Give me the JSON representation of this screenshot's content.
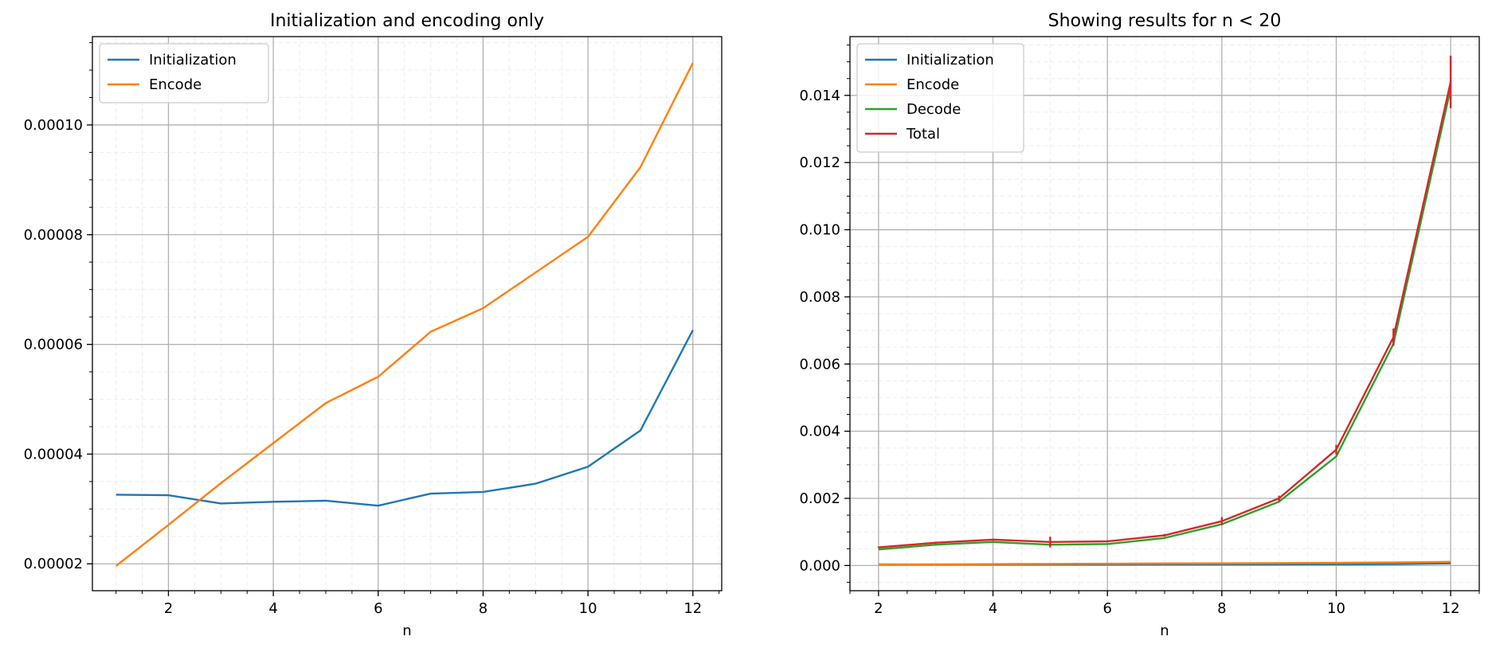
{
  "chart_data": [
    {
      "type": "line",
      "title": "Initialization and encoding only",
      "xlabel": "n",
      "ylabel": "",
      "xlim": [
        0.55,
        12.55
      ],
      "ylim": [
        1.51e-05,
        0.0001161
      ],
      "xticks": [
        2,
        4,
        6,
        8,
        10,
        12
      ],
      "xtick_labels": [
        "2",
        "4",
        "6",
        "8",
        "10",
        "12"
      ],
      "yticks": [
        2e-05,
        4e-05,
        6e-05,
        8e-05,
        0.0001
      ],
      "ytick_labels": [
        "0.00002",
        "0.00004",
        "0.00006",
        "0.00008",
        "0.00010"
      ],
      "grid": true,
      "minor_grid": true,
      "legend_position": "top-left",
      "x": [
        1,
        2,
        3,
        4,
        5,
        6,
        7,
        8,
        9,
        10,
        11,
        12
      ],
      "series": [
        {
          "name": "Initialization",
          "color": "#1f77b4",
          "values": [
            3.26e-05,
            3.25e-05,
            3.1e-05,
            3.13e-05,
            3.15e-05,
            3.06e-05,
            3.28e-05,
            3.31e-05,
            3.46e-05,
            3.77e-05,
            4.43e-05,
            6.26e-05
          ]
        },
        {
          "name": "Encode",
          "color": "#ff7f0e",
          "values": [
            1.96e-05,
            2.71e-05,
            3.47e-05,
            4.2e-05,
            4.93e-05,
            5.41e-05,
            6.23e-05,
            6.66e-05,
            7.31e-05,
            7.96e-05,
            9.23e-05,
            0.0001113
          ]
        }
      ]
    },
    {
      "type": "line",
      "title": "Showing results for n < 20",
      "xlabel": "n",
      "ylabel": "",
      "xlim": [
        1.5,
        12.5
      ],
      "ylim": [
        -0.00075,
        0.01575
      ],
      "xticks": [
        2,
        4,
        6,
        8,
        10,
        12
      ],
      "xtick_labels": [
        "2",
        "4",
        "6",
        "8",
        "10",
        "12"
      ],
      "yticks": [
        0,
        0.002,
        0.004,
        0.006,
        0.008,
        0.01,
        0.012,
        0.014
      ],
      "ytick_labels": [
        "0.000",
        "0.002",
        "0.004",
        "0.006",
        "0.008",
        "0.010",
        "0.012",
        "0.014"
      ],
      "grid": true,
      "minor_grid": true,
      "legend_position": "top-left",
      "x": [
        2,
        3,
        4,
        5,
        6,
        7,
        8,
        9,
        10,
        11,
        12
      ],
      "series": [
        {
          "name": "Initialization",
          "color": "#1f77b4",
          "values": [
            3.25e-05,
            3.1e-05,
            3.13e-05,
            3.15e-05,
            3.06e-05,
            3.28e-05,
            3.31e-05,
            3.46e-05,
            3.77e-05,
            4.43e-05,
            6.26e-05
          ]
        },
        {
          "name": "Encode",
          "color": "#ff7f0e",
          "values": [
            2.71e-05,
            3.47e-05,
            4.2e-05,
            4.93e-05,
            5.41e-05,
            6.23e-05,
            6.66e-05,
            7.31e-05,
            7.96e-05,
            9.23e-05,
            0.0001113
          ]
        },
        {
          "name": "Decode",
          "color": "#2ca02c",
          "values": [
            0.00048,
            0.00062,
            0.0007,
            0.00062,
            0.00064,
            0.00082,
            0.00123,
            0.0019,
            0.00325,
            0.0066,
            0.0142
          ]
        },
        {
          "name": "Total",
          "color": "#d62728",
          "values": [
            0.00054,
            0.00068,
            0.00077,
            0.0007,
            0.00072,
            0.0009,
            0.00132,
            0.002,
            0.00345,
            0.0068,
            0.0144
          ],
          "errors": [
            2e-05,
            3e-05,
            3e-05,
            0.00016,
            3e-05,
            4e-05,
            0.00012,
            8e-05,
            0.00014,
            0.00026,
            0.00078
          ]
        }
      ]
    }
  ]
}
